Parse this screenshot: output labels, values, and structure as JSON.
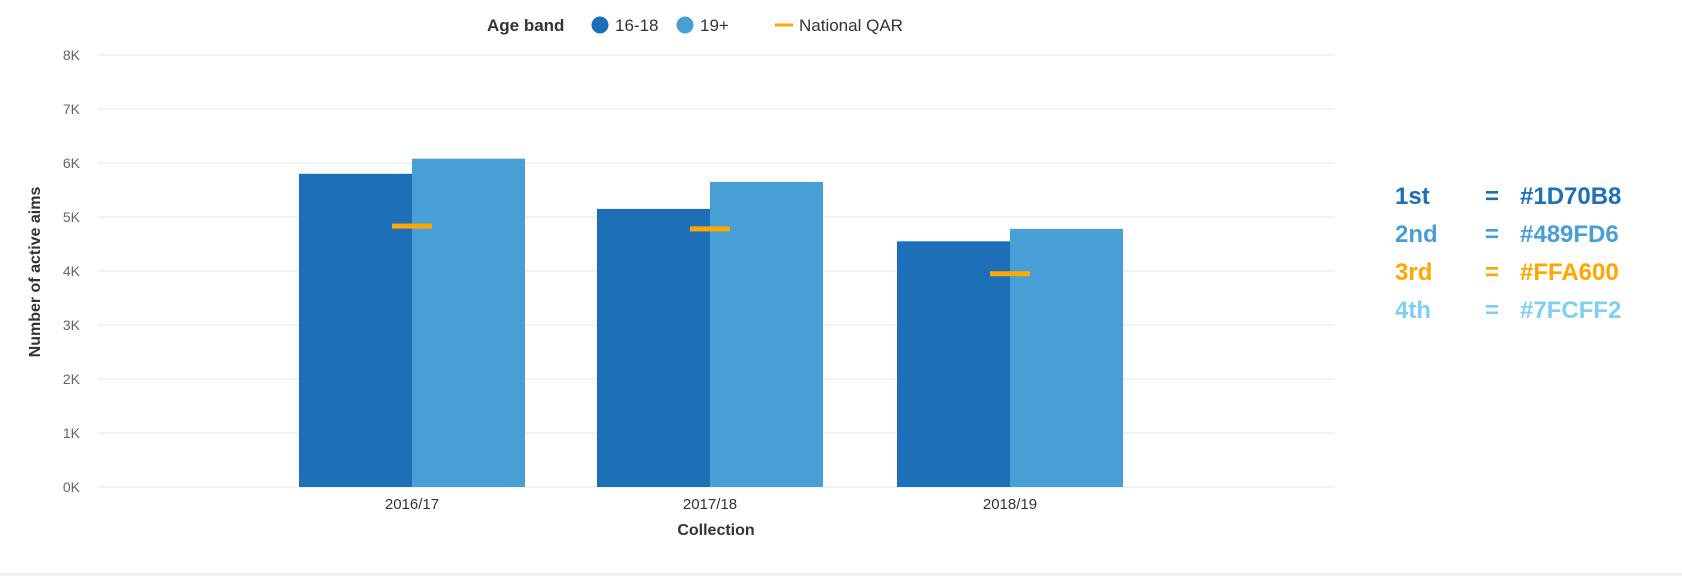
{
  "chart_data": {
    "type": "bar",
    "title": "",
    "xlabel": "Collection",
    "ylabel": "Number of active aims",
    "categories": [
      "2016/17",
      "2017/18",
      "2018/19"
    ],
    "series": [
      {
        "name": "16-18",
        "values": [
          5800,
          5150,
          4550
        ],
        "color": "#1D70B8"
      },
      {
        "name": "19+",
        "values": [
          6080,
          5650,
          4780
        ],
        "color": "#489FD6"
      }
    ],
    "markers": {
      "name": "National QAR",
      "values": [
        4830,
        4780,
        3950
      ],
      "color": "#FFA600"
    },
    "ylim": [
      0,
      8000
    ],
    "yticks": [
      "0K",
      "1K",
      "2K",
      "3K",
      "4K",
      "5K",
      "6K",
      "7K",
      "8K"
    ],
    "grid": true,
    "legend": {
      "title": "Age band",
      "position": "top-center"
    }
  },
  "palette": {
    "items": [
      {
        "rank": "1st",
        "eq": "=",
        "hex": "#1D70B8",
        "color": "#1D70B8"
      },
      {
        "rank": "2nd",
        "eq": "=",
        "hex": "#489FD6",
        "color": "#489FD6"
      },
      {
        "rank": "3rd",
        "eq": "=",
        "hex": "#FFA600",
        "color": "#FFA600"
      },
      {
        "rank": "4th",
        "eq": "=",
        "hex": "#7FCFF2",
        "color": "#7FCFF2"
      }
    ]
  }
}
